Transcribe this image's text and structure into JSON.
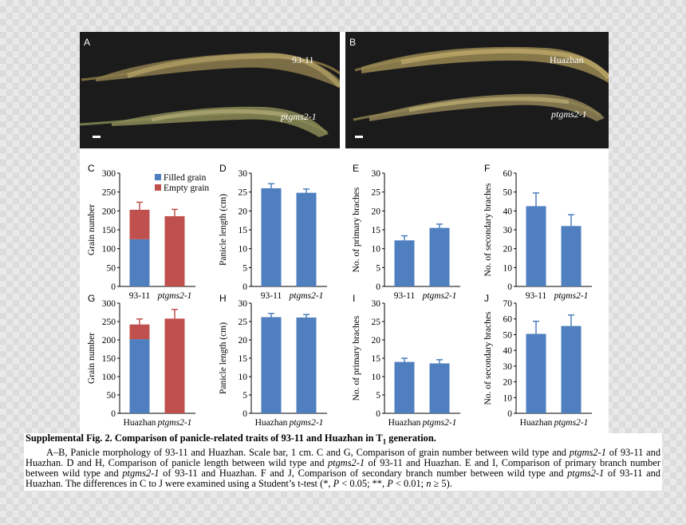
{
  "photos": {
    "A": {
      "panel": "A",
      "label_top": "93-11",
      "label_bottom": "ptgms2-1"
    },
    "B": {
      "panel": "B",
      "label_top": "Huazhan",
      "label_bottom": "ptgms2-1"
    }
  },
  "colors": {
    "filled": "#4f7fbf",
    "empty": "#c0504d",
    "bar": "#4f7fbf"
  },
  "chart_data": [
    {
      "panel": "C",
      "type": "bar",
      "stacked": true,
      "ylabel": "Grain number",
      "ylim": [
        0,
        300
      ],
      "yticks": [
        0,
        50,
        100,
        150,
        200,
        250,
        300
      ],
      "categories": [
        "93-11",
        "ptgms2-1"
      ],
      "italic_categories": [
        false,
        true
      ],
      "legend": [
        "Filled grain",
        "Empty grain"
      ],
      "series": [
        {
          "name": "Filled grain",
          "values": [
            125,
            0
          ],
          "errors": [
            12,
            0
          ]
        },
        {
          "name": "Empty grain",
          "values": [
            78,
            186
          ],
          "errors": [
            20,
            18
          ]
        }
      ]
    },
    {
      "panel": "D",
      "type": "bar",
      "ylabel": "Panicle length (cm)",
      "ylim": [
        0,
        30
      ],
      "yticks": [
        0,
        5,
        10,
        15,
        20,
        25,
        30
      ],
      "categories": [
        "93-11",
        "ptgms2-1"
      ],
      "italic_categories": [
        false,
        true
      ],
      "series": [
        {
          "name": "Panicle length",
          "values": [
            26,
            24.8
          ],
          "errors": [
            1.2,
            1.0
          ]
        }
      ]
    },
    {
      "panel": "E",
      "type": "bar",
      "ylabel": "No. of primary braches",
      "ylim": [
        0,
        30
      ],
      "yticks": [
        0,
        5,
        10,
        15,
        20,
        25,
        30
      ],
      "categories": [
        "93-11",
        "ptgms2-1"
      ],
      "italic_categories": [
        false,
        true
      ],
      "series": [
        {
          "name": "Primary branches",
          "values": [
            12.2,
            15.5
          ],
          "errors": [
            1.2,
            1.0
          ]
        }
      ]
    },
    {
      "panel": "F",
      "type": "bar",
      "ylabel": "No. of secondary braches",
      "ylim": [
        0,
        60
      ],
      "yticks": [
        0,
        10,
        20,
        30,
        40,
        50,
        60
      ],
      "categories": [
        "93-11",
        "ptgms2-1"
      ],
      "italic_categories": [
        false,
        true
      ],
      "series": [
        {
          "name": "Secondary branches",
          "values": [
            42.5,
            32
          ],
          "errors": [
            7,
            6
          ]
        }
      ]
    },
    {
      "panel": "G",
      "type": "bar",
      "stacked": true,
      "ylabel": "Grain number",
      "ylim": [
        0,
        300
      ],
      "yticks": [
        0,
        50,
        100,
        150,
        200,
        250,
        300
      ],
      "categories": [
        "Huazhan",
        "ptgms2-1"
      ],
      "italic_categories": [
        false,
        true
      ],
      "series": [
        {
          "name": "Filled grain",
          "values": [
            202,
            0
          ],
          "errors": [
            10,
            0
          ]
        },
        {
          "name": "Empty grain",
          "values": [
            40,
            258
          ],
          "errors": [
            15,
            25
          ]
        }
      ]
    },
    {
      "panel": "H",
      "type": "bar",
      "ylabel": "Panicle length (cm)",
      "ylim": [
        0,
        30
      ],
      "yticks": [
        0,
        5,
        10,
        15,
        20,
        25,
        30
      ],
      "categories": [
        "Huazhan",
        "ptgms2-1"
      ],
      "italic_categories": [
        false,
        true
      ],
      "series": [
        {
          "name": "Panicle length",
          "values": [
            26.2,
            26.1
          ],
          "errors": [
            1.0,
            0.8
          ]
        }
      ]
    },
    {
      "panel": "I",
      "type": "bar",
      "ylabel": "No. of primary braches",
      "ylim": [
        0,
        30
      ],
      "yticks": [
        0,
        5,
        10,
        15,
        20,
        25,
        30
      ],
      "categories": [
        "Huazhan",
        "ptgms2-1"
      ],
      "italic_categories": [
        false,
        true
      ],
      "series": [
        {
          "name": "Primary branches",
          "values": [
            14,
            13.6
          ],
          "errors": [
            1.0,
            1.0
          ]
        }
      ]
    },
    {
      "panel": "J",
      "type": "bar",
      "ylabel": "No. of secondary braches",
      "ylim": [
        0,
        70
      ],
      "yticks": [
        0,
        10,
        20,
        30,
        40,
        50,
        60,
        70
      ],
      "categories": [
        "Huazhan",
        "ptgms2-1"
      ],
      "italic_categories": [
        false,
        true
      ],
      "series": [
        {
          "name": "Secondary branches",
          "values": [
            50.5,
            55.5
          ],
          "errors": [
            8,
            7
          ]
        }
      ]
    }
  ],
  "caption": {
    "title": "Supplemental Fig. 2. Comparison of panicle-related traits of 93-11 and Huazhan in T",
    "title_sub": "1",
    "title_end": " generation.",
    "p1": "A–B, Panicle morphology of 93-11 and Huazhan. Scale bar, 1 cm. C and G, Comparison of grain number between wild type and ",
    "i1": "ptgms2-1",
    "p2": " of 93-11 and Huazhan. D and H, Comparison of panicle length between wild type and ",
    "i2": "ptgms2-1",
    "p3": " of 93-11 and Huazhan. E and I, Comparison of primary branch number between wild type and ",
    "i3": "ptgms2-1",
    "p4": " of 93-11 and Huazhan. F and J, Comparison of secondary branch number between wild type and ",
    "i4": "ptgms2-1",
    "p5": " of 93-11 and Huazhan. The differences in C to J were examined using a Student’s t-test (*, ",
    "i5": "P",
    "p6": " < 0.05; **, ",
    "i6": "P",
    "p7": " < 0.01; ",
    "i7": "n",
    "p8": " ≥ 5)."
  }
}
